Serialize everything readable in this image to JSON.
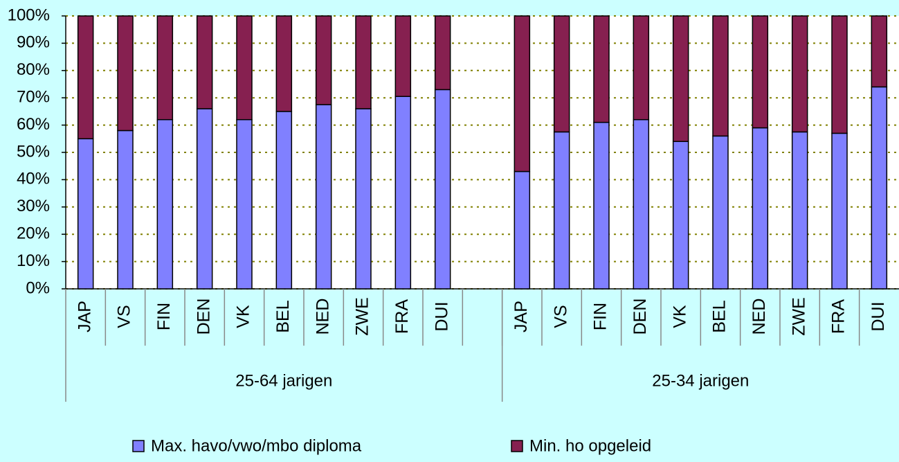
{
  "chart_data": {
    "type": "stacked_bar",
    "categories": [
      "JAP",
      "VS",
      "FIN",
      "DEN",
      "VK",
      "BEL",
      "NED",
      "ZWE",
      "FRA",
      "DUI",
      null,
      "JAP",
      "VS",
      "FIN",
      "DEN",
      "VK",
      "BEL",
      "NED",
      "ZWE",
      "FRA",
      "DUI"
    ],
    "groups": [
      "25-64 jarigen",
      "25-34 jarigen"
    ],
    "series": [
      {
        "name": "Max. havo/vwo/mbo diploma",
        "color": "#8080ff",
        "values": [
          55,
          58,
          62,
          66,
          62,
          65,
          67.5,
          66,
          70.5,
          73,
          null,
          43,
          57.5,
          61,
          62,
          54,
          56,
          59,
          57.5,
          57,
          74
        ]
      },
      {
        "name": "Min. ho opgeleid",
        "color": "#862050",
        "values": [
          45,
          42,
          38,
          34,
          38,
          35,
          32.5,
          34,
          29.5,
          27,
          null,
          57,
          42.5,
          39,
          38,
          46,
          44,
          41,
          42.5,
          43,
          26
        ]
      }
    ],
    "ylim": [
      0,
      100
    ],
    "yticks": [
      {
        "value": 0,
        "label": "0%"
      },
      {
        "value": 10,
        "label": "10%"
      },
      {
        "value": 20,
        "label": "20%"
      },
      {
        "value": 30,
        "label": "30%"
      },
      {
        "value": 40,
        "label": "40%"
      },
      {
        "value": 50,
        "label": "50%"
      },
      {
        "value": 60,
        "label": "60%"
      },
      {
        "value": 70,
        "label": "70%"
      },
      {
        "value": 80,
        "label": "80%"
      },
      {
        "value": 90,
        "label": "90%"
      },
      {
        "value": 100,
        "label": "100%"
      }
    ],
    "grid": true
  }
}
